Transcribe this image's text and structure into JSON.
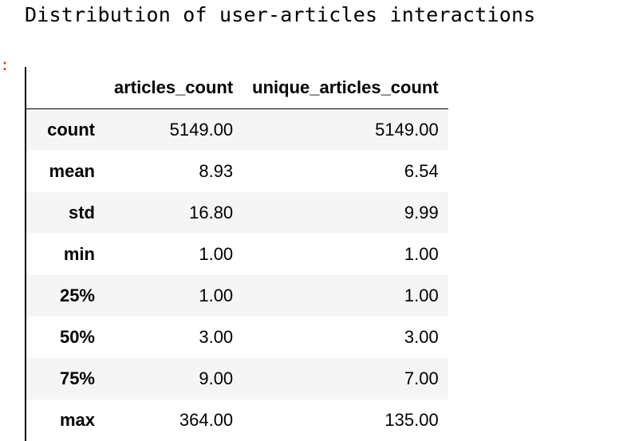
{
  "output": {
    "title": "Distribution of user-articles interactions",
    "prompt_mark": ":"
  },
  "table": {
    "corner": "",
    "columns": [
      "articles_count",
      "unique_articles_count"
    ],
    "rows": [
      {
        "label": "count",
        "values": [
          "5149.00",
          "5149.00"
        ]
      },
      {
        "label": "mean",
        "values": [
          "8.93",
          "6.54"
        ]
      },
      {
        "label": "std",
        "values": [
          "16.80",
          "9.99"
        ]
      },
      {
        "label": "min",
        "values": [
          "1.00",
          "1.00"
        ]
      },
      {
        "label": "25%",
        "values": [
          "1.00",
          "1.00"
        ]
      },
      {
        "label": "50%",
        "values": [
          "3.00",
          "3.00"
        ]
      },
      {
        "label": "75%",
        "values": [
          "9.00",
          "7.00"
        ]
      },
      {
        "label": "max",
        "values": [
          "364.00",
          "135.00"
        ]
      }
    ]
  }
}
